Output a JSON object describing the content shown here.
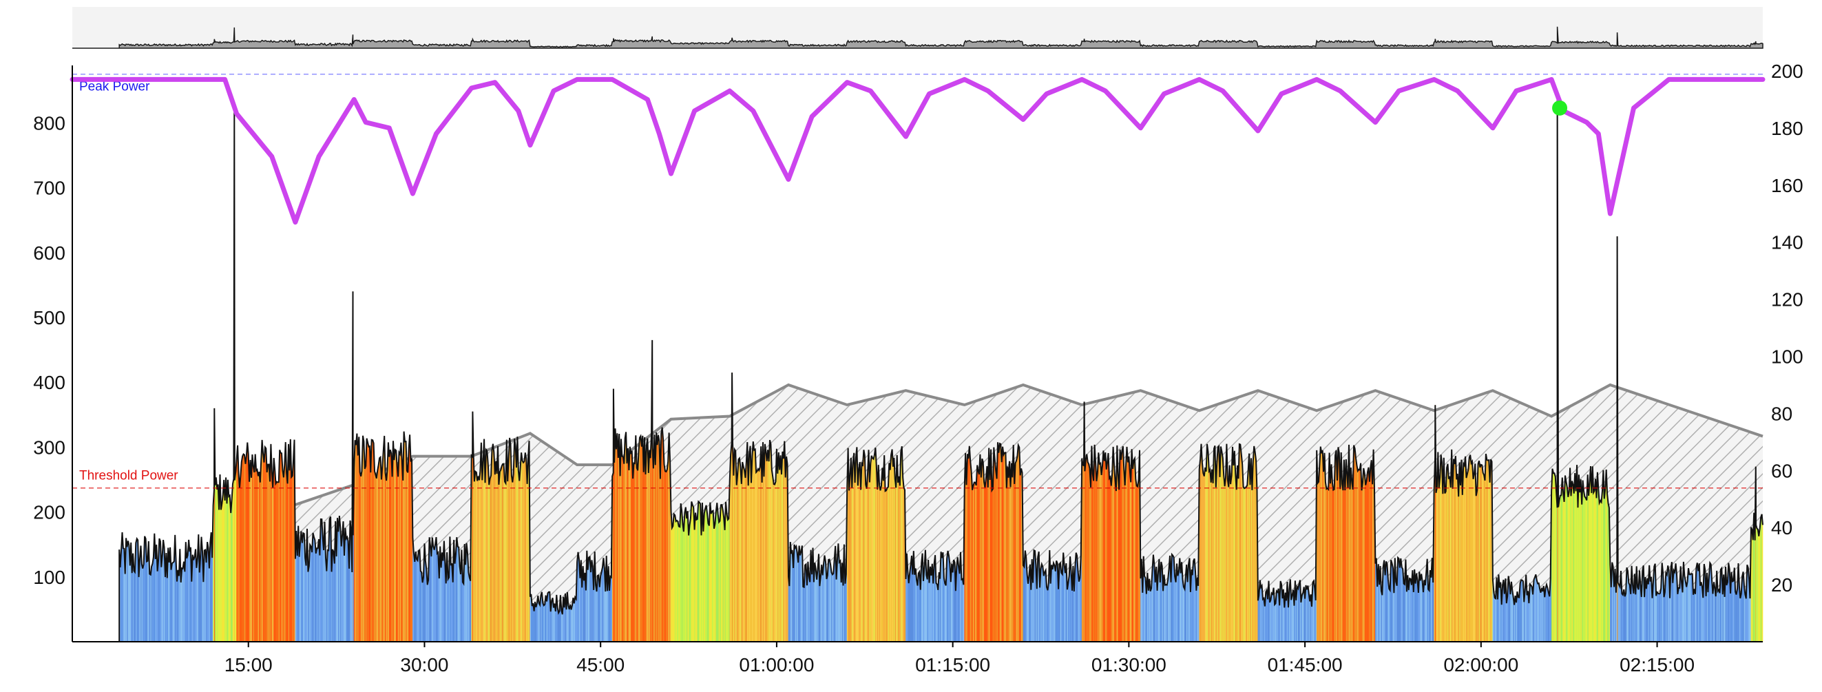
{
  "chart_data": {
    "type": "area",
    "x_ticks": [
      "15:00",
      "30:00",
      "45:00",
      "01:00:00",
      "01:15:00",
      "01:30:00",
      "01:45:00",
      "02:00:00",
      "02:15:00"
    ],
    "x_tick_minutes": [
      15,
      30,
      45,
      60,
      75,
      90,
      105,
      120,
      135
    ],
    "x_range_minutes": [
      0,
      144
    ],
    "y_left_ticks": [
      100,
      200,
      300,
      400,
      500,
      600,
      700,
      800
    ],
    "y_left_range": [
      0,
      880
    ],
    "y_right_ticks": [
      20,
      40,
      60,
      80,
      100,
      120,
      140,
      160,
      180,
      200
    ],
    "y_right_range": [
      0,
      200
    ],
    "reference_lines": [
      {
        "label": "Peak Power",
        "value": 875,
        "axis": "left",
        "color": "#6666ff"
      },
      {
        "label": "Threshold Power",
        "value": 237,
        "axis": "left",
        "color": "#dd0000"
      }
    ],
    "power_segments": [
      {
        "start": 4,
        "end": 12,
        "level": 130,
        "zone": "recovery"
      },
      {
        "start": 12,
        "end": 14,
        "level": 230,
        "zone": "tempo"
      },
      {
        "start": 14,
        "end": 19,
        "level": 275,
        "zone": "threshold"
      },
      {
        "start": 19,
        "end": 24,
        "level": 150,
        "zone": "recovery"
      },
      {
        "start": 24,
        "end": 29,
        "level": 285,
        "zone": "threshold"
      },
      {
        "start": 29,
        "end": 34,
        "level": 125,
        "zone": "recovery"
      },
      {
        "start": 34,
        "end": 39,
        "level": 280,
        "zone": "sweetspot"
      },
      {
        "start": 39,
        "end": 43,
        "level": 60,
        "zone": "recovery"
      },
      {
        "start": 43,
        "end": 46,
        "level": 110,
        "zone": "recovery"
      },
      {
        "start": 46,
        "end": 51,
        "level": 290,
        "zone": "threshold"
      },
      {
        "start": 51,
        "end": 56,
        "level": 190,
        "zone": "tempo"
      },
      {
        "start": 56,
        "end": 61,
        "level": 275,
        "zone": "sweetspot"
      },
      {
        "start": 61,
        "end": 66,
        "level": 120,
        "zone": "recovery"
      },
      {
        "start": 66,
        "end": 71,
        "level": 270,
        "zone": "sweetspot"
      },
      {
        "start": 71,
        "end": 76,
        "level": 110,
        "zone": "recovery"
      },
      {
        "start": 76,
        "end": 81,
        "level": 270,
        "zone": "threshold"
      },
      {
        "start": 81,
        "end": 86,
        "level": 110,
        "zone": "recovery"
      },
      {
        "start": 86,
        "end": 91,
        "level": 270,
        "zone": "threshold"
      },
      {
        "start": 91,
        "end": 96,
        "level": 105,
        "zone": "recovery"
      },
      {
        "start": 96,
        "end": 101,
        "level": 270,
        "zone": "sweetspot"
      },
      {
        "start": 101,
        "end": 106,
        "level": 75,
        "zone": "recovery"
      },
      {
        "start": 106,
        "end": 111,
        "level": 270,
        "zone": "threshold"
      },
      {
        "start": 111,
        "end": 116,
        "level": 100,
        "zone": "recovery"
      },
      {
        "start": 116,
        "end": 121,
        "level": 260,
        "zone": "sweetspot"
      },
      {
        "start": 121,
        "end": 126,
        "level": 80,
        "zone": "recovery"
      },
      {
        "start": 126,
        "end": 131,
        "level": 240,
        "zone": "tempo"
      },
      {
        "start": 131,
        "end": 143,
        "level": 95,
        "zone": "recovery"
      },
      {
        "start": 143,
        "end": 144,
        "level": 180,
        "zone": "tempo"
      }
    ],
    "power_spikes": [
      {
        "x": 12.1,
        "y": 360
      },
      {
        "x": 13.8,
        "y": 820
      },
      {
        "x": 23.9,
        "y": 540
      },
      {
        "x": 34.1,
        "y": 355
      },
      {
        "x": 46.1,
        "y": 390
      },
      {
        "x": 49.4,
        "y": 465
      },
      {
        "x": 56.2,
        "y": 415
      },
      {
        "x": 86.2,
        "y": 370
      },
      {
        "x": 116.1,
        "y": 365
      },
      {
        "x": 126.5,
        "y": 850
      },
      {
        "x": 131.6,
        "y": 625
      },
      {
        "x": 143.4,
        "y": 270
      }
    ],
    "load_curve": [
      [
        19,
        48
      ],
      [
        24,
        55
      ],
      [
        29,
        65
      ],
      [
        34,
        65
      ],
      [
        39,
        73
      ],
      [
        43,
        62
      ],
      [
        46,
        62
      ],
      [
        51,
        78
      ],
      [
        56,
        79
      ],
      [
        61,
        90
      ],
      [
        66,
        83
      ],
      [
        71,
        88
      ],
      [
        76,
        83
      ],
      [
        81,
        90
      ],
      [
        86,
        83
      ],
      [
        91,
        88
      ],
      [
        96,
        81
      ],
      [
        101,
        88
      ],
      [
        106,
        81
      ],
      [
        111,
        88
      ],
      [
        116,
        81
      ],
      [
        121,
        88
      ],
      [
        126,
        79
      ],
      [
        131,
        90
      ],
      [
        144,
        72
      ]
    ],
    "peak_curve": [
      [
        0,
        197
      ],
      [
        13,
        197
      ],
      [
        14,
        185
      ],
      [
        17,
        170
      ],
      [
        19,
        147
      ],
      [
        21,
        170
      ],
      [
        24,
        190
      ],
      [
        25,
        182
      ],
      [
        27,
        180
      ],
      [
        29,
        157
      ],
      [
        31,
        178
      ],
      [
        34,
        194
      ],
      [
        36,
        196
      ],
      [
        38,
        186
      ],
      [
        39,
        174
      ],
      [
        41,
        193
      ],
      [
        43,
        197
      ],
      [
        46,
        197
      ],
      [
        49,
        190
      ],
      [
        50,
        178
      ],
      [
        51,
        164
      ],
      [
        53,
        186
      ],
      [
        56,
        193
      ],
      [
        58,
        186
      ],
      [
        61,
        162
      ],
      [
        63,
        184
      ],
      [
        66,
        196
      ],
      [
        68,
        193
      ],
      [
        71,
        177
      ],
      [
        73,
        192
      ],
      [
        76,
        197
      ],
      [
        78,
        193
      ],
      [
        81,
        183
      ],
      [
        83,
        192
      ],
      [
        86,
        197
      ],
      [
        88,
        193
      ],
      [
        91,
        180
      ],
      [
        93,
        192
      ],
      [
        96,
        197
      ],
      [
        98,
        193
      ],
      [
        101,
        179
      ],
      [
        103,
        192
      ],
      [
        106,
        197
      ],
      [
        108,
        193
      ],
      [
        111,
        182
      ],
      [
        113,
        193
      ],
      [
        116,
        197
      ],
      [
        118,
        193
      ],
      [
        121,
        180
      ],
      [
        123,
        193
      ],
      [
        126,
        197
      ],
      [
        127,
        186
      ],
      [
        129,
        182
      ],
      [
        130,
        178
      ],
      [
        131,
        150
      ],
      [
        133,
        187
      ],
      [
        136,
        197
      ],
      [
        144,
        197
      ]
    ],
    "marker": {
      "x": 126.7,
      "y": 187,
      "axis": "right",
      "color": "#22ee22"
    }
  }
}
